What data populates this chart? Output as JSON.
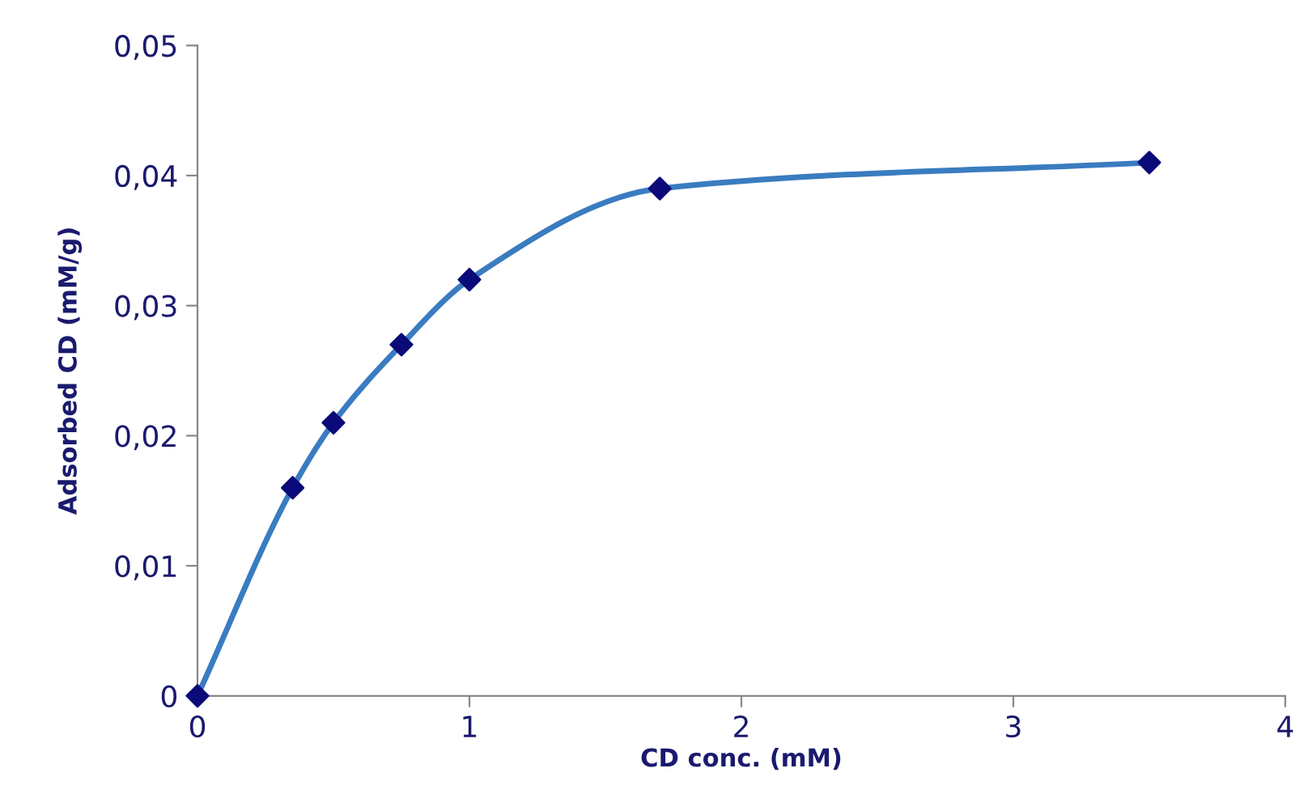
{
  "chart_data": {
    "type": "line",
    "xlabel": "CD conc. (mM)",
    "ylabel": "Adsorbed CD (mM/g)",
    "x": [
      0,
      0.35,
      0.5,
      0.75,
      1,
      1.7,
      3.5
    ],
    "series": [
      {
        "color": "#3a7cc0",
        "colors": [
          "#0a0a78",
          "#0a0a78",
          "#0a0a78",
          "#0a0a78",
          "#0a0a78",
          "#0a0a78",
          "#0a0a78"
        ],
        "values": [
          0,
          0.016,
          0.021,
          0.027,
          0.032,
          0.039,
          0.041
        ]
      }
    ],
    "marker": "diamond",
    "line_style": "solid",
    "grid": false,
    "legend": false,
    "xlim": [
      0,
      4
    ],
    "xticks": [
      0,
      1,
      2,
      3,
      4
    ],
    "ylim": [
      0,
      0.05
    ],
    "yticks": [
      0,
      {
        "value": 0.01,
        "label": "0,01"
      },
      {
        "value": 0.02,
        "label": "0,02"
      },
      {
        "value": 0.03,
        "label": "0,03"
      },
      {
        "value": 0.04,
        "label": "0,04"
      },
      {
        "value": 0.05,
        "label": "0,05"
      }
    ]
  }
}
